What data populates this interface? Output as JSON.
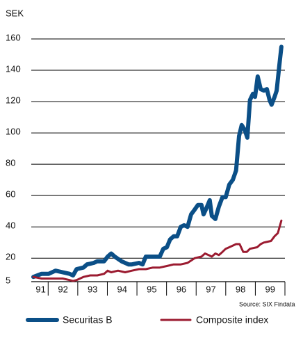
{
  "chart_data": {
    "type": "line",
    "y_unit": "SEK",
    "source": "Source: SIX Findata",
    "ylim": [
      5,
      160
    ],
    "yticks": [
      5,
      20,
      40,
      60,
      80,
      100,
      120,
      140,
      160
    ],
    "grid": true,
    "xlim": [
      1991.5,
      2000
    ],
    "xticks": [
      {
        "value": 1991.75,
        "label": "91"
      },
      {
        "value": 1992.5,
        "label": "92"
      },
      {
        "value": 1993.5,
        "label": "93"
      },
      {
        "value": 1994.5,
        "label": "94"
      },
      {
        "value": 1995.5,
        "label": "95"
      },
      {
        "value": 1996.5,
        "label": "96"
      },
      {
        "value": 1997.5,
        "label": "97"
      },
      {
        "value": 1998.5,
        "label": "98"
      },
      {
        "value": 1999.5,
        "label": "99"
      }
    ],
    "legend": "bottom",
    "series": [
      {
        "name": "Securitas B",
        "color": "#0b4f87",
        "x": [
          1991.5,
          1991.78,
          1992.02,
          1992.25,
          1992.49,
          1992.72,
          1992.84,
          1992.96,
          1993.19,
          1993.31,
          1993.54,
          1993.66,
          1993.89,
          1994.01,
          1994.13,
          1994.25,
          1994.48,
          1994.72,
          1994.83,
          1995.07,
          1995.19,
          1995.3,
          1995.54,
          1995.77,
          1995.89,
          1996.01,
          1996.12,
          1996.24,
          1996.36,
          1996.48,
          1996.59,
          1996.71,
          1996.83,
          1996.95,
          1997.06,
          1997.18,
          1997.25,
          1997.35,
          1997.46,
          1997.53,
          1997.65,
          1997.77,
          1997.89,
          1998.0,
          1998.12,
          1998.24,
          1998.35,
          1998.45,
          1998.54,
          1998.64,
          1998.73,
          1998.82,
          1998.92,
          1998.99,
          1999.08,
          1999.18,
          1999.29,
          1999.39,
          1999.48,
          1999.55,
          1999.65,
          1999.72,
          1999.81,
          1999.88
        ],
        "values": [
          8,
          10,
          10,
          12,
          11,
          10,
          9,
          13,
          14,
          16,
          17,
          18,
          18,
          21,
          23,
          21,
          18,
          16,
          16,
          17,
          16,
          21,
          21,
          21,
          26,
          27,
          32,
          34,
          34,
          40,
          41,
          40,
          48,
          51,
          54,
          54,
          48,
          52,
          57,
          47,
          45,
          53,
          59,
          59,
          67,
          70,
          76,
          98,
          105,
          102,
          97,
          121,
          125,
          123,
          136,
          128,
          127,
          128,
          121,
          118,
          123,
          127,
          143,
          155
        ]
      },
      {
        "name": "Composite index",
        "color": "#9b1b30",
        "x": [
          1991.5,
          1991.78,
          1992.02,
          1992.25,
          1992.49,
          1992.72,
          1992.84,
          1992.96,
          1993.19,
          1993.42,
          1993.66,
          1993.89,
          1994.01,
          1994.13,
          1994.36,
          1994.6,
          1994.83,
          1995.07,
          1995.3,
          1995.54,
          1995.77,
          1996.01,
          1996.24,
          1996.48,
          1996.71,
          1996.95,
          1997.18,
          1997.3,
          1997.42,
          1997.53,
          1997.65,
          1997.77,
          1997.89,
          1998.0,
          1998.12,
          1998.35,
          1998.47,
          1998.59,
          1998.71,
          1998.82,
          1999.06,
          1999.18,
          1999.29,
          1999.53,
          1999.65,
          1999.76,
          1999.88
        ],
        "values": [
          8,
          7,
          7,
          7,
          7,
          6,
          5.5,
          6,
          8,
          9,
          9,
          10,
          12,
          11,
          12,
          11,
          12,
          13,
          13,
          14,
          14,
          15,
          16,
          16,
          17,
          20,
          21,
          23,
          22,
          21,
          23,
          22,
          24,
          26,
          27,
          29,
          29,
          24,
          24,
          26,
          27,
          29,
          30,
          31,
          34,
          36,
          44
        ]
      }
    ]
  }
}
